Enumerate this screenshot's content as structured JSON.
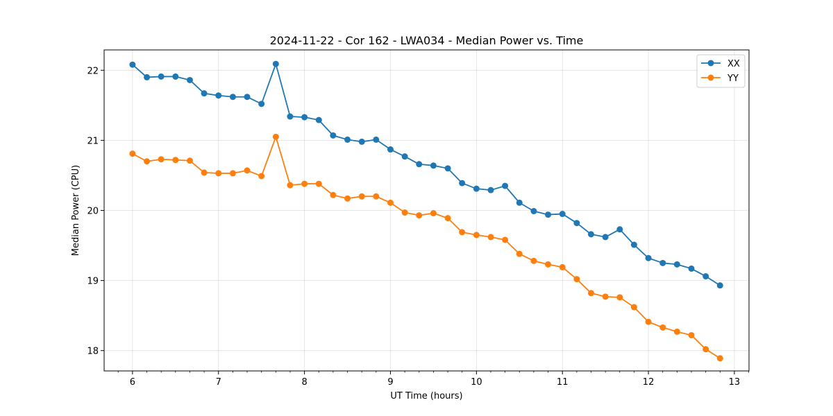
{
  "chart_data": {
    "type": "line",
    "title": "2024-11-22 - Cor 162 - LWA034 - Median Power vs. Time",
    "xlabel": "UT Time (hours)",
    "ylabel": "Median Power (CPU)",
    "xlim": [
      5.67,
      13.17
    ],
    "ylim": [
      17.71,
      22.29
    ],
    "x_ticks": [
      6,
      7,
      8,
      9,
      10,
      11,
      12,
      13
    ],
    "y_ticks": [
      18,
      19,
      20,
      21,
      22
    ],
    "grid": true,
    "legend_position": "top-right",
    "x": [
      6.0,
      6.167,
      6.333,
      6.5,
      6.667,
      6.833,
      7.0,
      7.167,
      7.333,
      7.5,
      7.667,
      7.833,
      8.0,
      8.167,
      8.333,
      8.5,
      8.667,
      8.833,
      9.0,
      9.167,
      9.333,
      9.5,
      9.667,
      9.833,
      10.0,
      10.167,
      10.333,
      10.5,
      10.667,
      10.833,
      11.0,
      11.167,
      11.333,
      11.5,
      11.667,
      11.833,
      12.0,
      12.167,
      12.333,
      12.5,
      12.667,
      12.833
    ],
    "series": [
      {
        "name": "XX",
        "color": "#1f77b4",
        "values": [
          22.08,
          21.9,
          21.91,
          21.91,
          21.86,
          21.67,
          21.64,
          21.62,
          21.62,
          21.52,
          22.09,
          21.34,
          21.33,
          21.29,
          21.07,
          21.01,
          20.98,
          21.01,
          20.87,
          20.77,
          20.66,
          20.64,
          20.6,
          20.39,
          20.31,
          20.29,
          20.35,
          20.11,
          19.99,
          19.94,
          19.95,
          19.82,
          19.66,
          19.62,
          19.73,
          19.51,
          19.32,
          19.25,
          19.23,
          19.17,
          19.06,
          18.93
        ]
      },
      {
        "name": "YY",
        "color": "#ff7f0e",
        "values": [
          20.81,
          20.7,
          20.73,
          20.72,
          20.71,
          20.54,
          20.53,
          20.53,
          20.57,
          20.49,
          21.05,
          20.36,
          20.38,
          20.38,
          20.22,
          20.17,
          20.2,
          20.2,
          20.11,
          19.97,
          19.93,
          19.96,
          19.89,
          19.69,
          19.65,
          19.62,
          19.58,
          19.38,
          19.28,
          19.23,
          19.19,
          19.02,
          18.82,
          18.77,
          18.76,
          18.62,
          18.41,
          18.33,
          18.27,
          18.22,
          18.02,
          17.89
        ]
      }
    ]
  }
}
